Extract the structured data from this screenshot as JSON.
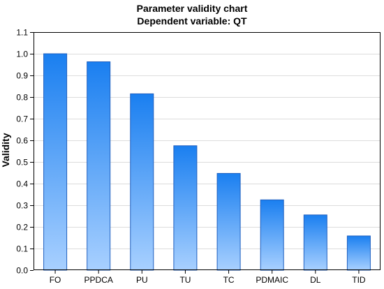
{
  "chart_data": {
    "type": "bar",
    "title": "Parameter validity chart",
    "subtitle": "Dependent variable: QT",
    "xlabel": "",
    "ylabel": "Validity",
    "categories": [
      "FO",
      "PPDCA",
      "PU",
      "TU",
      "TC",
      "PDMAIC",
      "DL",
      "TID"
    ],
    "values": [
      1.0,
      0.963,
      0.815,
      0.575,
      0.447,
      0.325,
      0.255,
      0.158
    ],
    "ylim": [
      0,
      1.1
    ],
    "yticks": [
      0.0,
      0.1,
      0.2,
      0.3,
      0.4,
      0.5,
      0.6,
      0.7,
      0.8,
      0.9,
      1.0,
      1.1
    ],
    "ytick_labels": [
      "0.0",
      "0.1",
      "0.2",
      "0.3",
      "0.4",
      "0.5",
      "0.6",
      "0.7",
      "0.8",
      "0.9",
      "1.0",
      "1.1"
    ],
    "grid": true,
    "legend": "none",
    "colors": {
      "bar_top": "#1a7ff0",
      "bar_bottom": "#a8d0ff",
      "bar_edge": "#1f5fbf",
      "grid": "#dcdcdc"
    }
  }
}
